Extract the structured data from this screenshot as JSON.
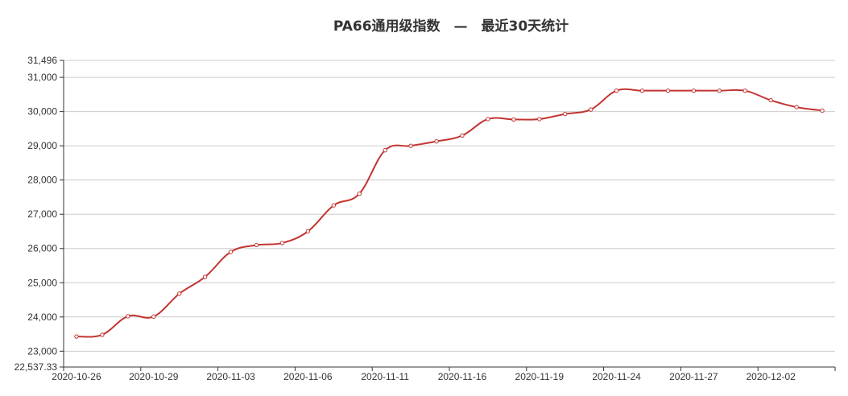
{
  "chart_data": {
    "type": "line",
    "title": "PA66通用级指数　—　最近30天统计",
    "xlabel": "",
    "ylabel": "",
    "ylim": [
      22537.33,
      31496
    ],
    "y_ticks": [
      "22,537.33",
      "23,000",
      "24,000",
      "25,000",
      "26,000",
      "27,000",
      "28,000",
      "29,000",
      "30,000",
      "31,000",
      "31,496"
    ],
    "x_tick_labels": [
      "2020-10-26",
      "2020-10-29",
      "2020-11-03",
      "2020-11-06",
      "2020-11-11",
      "2020-11-16",
      "2020-11-19",
      "2020-11-24",
      "2020-11-27",
      "2020-12-02"
    ],
    "grid": true,
    "legend": "none",
    "smooth": true,
    "line_color": "#c23531",
    "series": [
      {
        "values": [
          23430,
          23480,
          24020,
          24010,
          24680,
          25170,
          25900,
          26100,
          26160,
          26500,
          27260,
          27600,
          28870,
          29000,
          29130,
          29300,
          29780,
          29770,
          29780,
          29930,
          30060,
          30610,
          30610,
          30610,
          30610,
          30610,
          30610,
          30330,
          30130,
          30030
        ]
      }
    ]
  }
}
